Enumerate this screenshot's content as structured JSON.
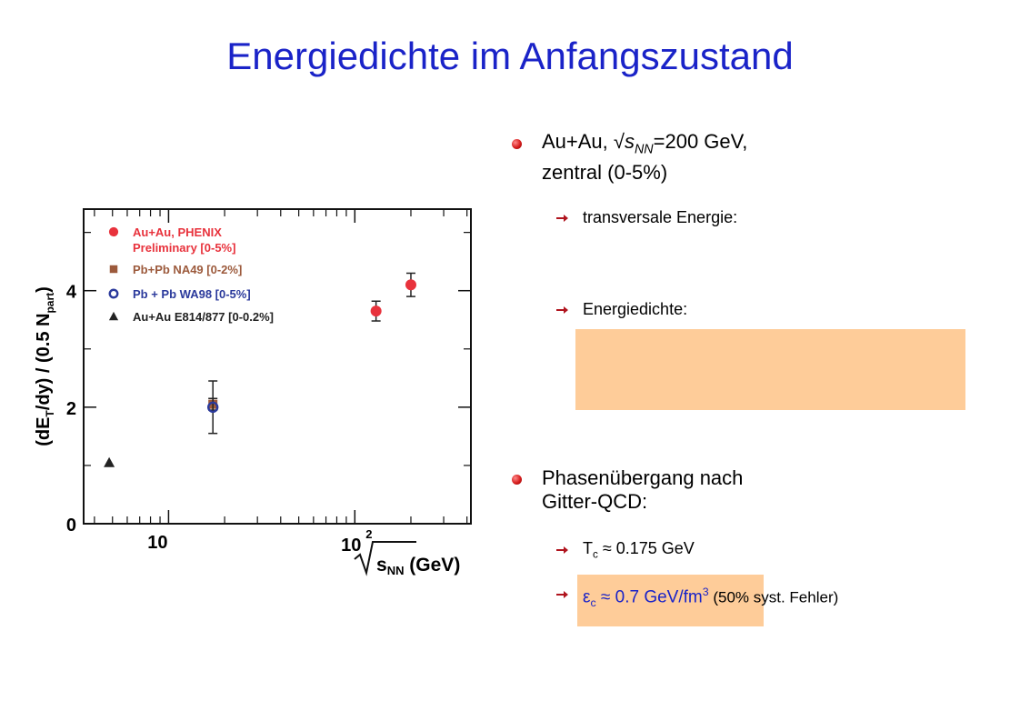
{
  "title": "Energiedichte im Anfangszustand",
  "bullets": {
    "b1_line1_prefix": "Au+Au, √",
    "b1_s": "s",
    "b1_sub": "NN",
    "b1_line1_suffix": "=200 GeV,",
    "b1_line2": "zentral (0-5%)",
    "b1_sub1": "transversale Energie:",
    "b1_sub2": "Energiedichte:",
    "b2_line1": "Phasenübergang nach",
    "b2_line2": "Gitter-QCD:",
    "b2_sub1_T": "T",
    "b2_sub1_c": "c",
    "b2_sub1_rest": " ≈ 0.175 GeV",
    "b2_sub2_eps": "ε",
    "b2_sub2_c": "c",
    "b2_sub2_rest": " ≈ 0.7 GeV/fm",
    "b2_sub2_sup": "3",
    "b2_sub2_note": " (50% syst. Fehler)"
  },
  "chart_data": {
    "type": "scatter",
    "xscale": "log",
    "ylabel": "(dE_T/dy) / (0.5 N_part)",
    "xlabel": "√s_NN (GeV)",
    "ylim": [
      0,
      5.4
    ],
    "xlim": [
      3.5,
      420
    ],
    "y_ticks": [
      "0",
      "2",
      "4"
    ],
    "x_tick_10": "10",
    "x_tick_100_base": "10",
    "x_tick_100_exp": "2",
    "series": [
      {
        "name": "Au+Au, PHENIX",
        "name2": "Preliminary [0-5%]",
        "color": "#e8323c",
        "marker": "circle-filled",
        "points": [
          {
            "x": 130,
            "y": 3.65,
            "err": 0.17
          },
          {
            "x": 200,
            "y": 4.1,
            "err": 0.2
          }
        ]
      },
      {
        "name": "Pb+Pb NA49 [0-2%]",
        "color": "#9c5a3c",
        "marker": "square-filled",
        "points": [
          {
            "x": 17.3,
            "y": 2.05,
            "err": 0.1
          }
        ]
      },
      {
        "name": "Pb + Pb WA98 [0-5%]",
        "color": "#2b3a9c",
        "marker": "circle-open",
        "points": [
          {
            "x": 17.3,
            "y": 2.0,
            "err": 0.45
          }
        ]
      },
      {
        "name": "Au+Au E814/877 [0-0.2%]",
        "color": "#222222",
        "marker": "triangle-filled",
        "points": [
          {
            "x": 4.8,
            "y": 1.05,
            "err": 0
          }
        ]
      }
    ]
  }
}
